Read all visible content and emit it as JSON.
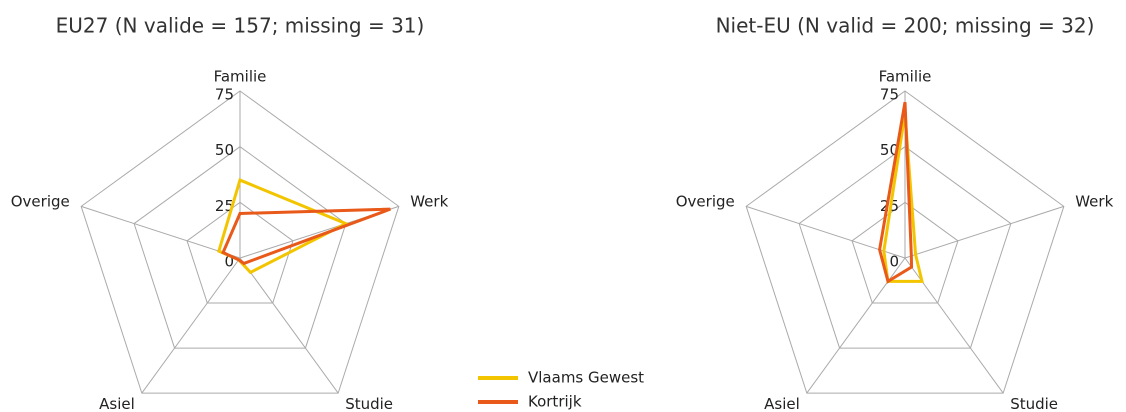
{
  "chart_data": [
    {
      "type": "radar",
      "title": "EU27 (N valide = 157; missing = 31)",
      "categories": [
        "Familie",
        "Werk",
        "Studie",
        "Asiel",
        "Overige"
      ],
      "ylim": [
        0,
        75
      ],
      "yticks": [
        0,
        25,
        50,
        75
      ],
      "grid": true,
      "legend": "bottom-right",
      "series": [
        {
          "name": "Vlaams Gewest",
          "color": "#f2c500",
          "values": [
            35,
            50,
            8,
            1,
            10
          ]
        },
        {
          "name": "Kortrijk",
          "color": "#e8591a",
          "values": [
            20,
            71,
            3,
            1,
            8
          ]
        }
      ]
    },
    {
      "type": "radar",
      "title": "Niet-EU (N valid = 200; missing = 32)",
      "categories": [
        "Familie",
        "Werk",
        "Studie",
        "Asiel",
        "Overige"
      ],
      "ylim": [
        0,
        75
      ],
      "yticks": [
        0,
        25,
        50,
        75
      ],
      "grid": true,
      "series": [
        {
          "name": "Vlaams Gewest",
          "color": "#f2c500",
          "values": [
            65,
            5,
            13,
            13,
            10
          ]
        },
        {
          "name": "Kortrijk",
          "color": "#e8591a",
          "values": [
            70,
            3,
            5,
            13,
            12
          ]
        }
      ]
    }
  ]
}
